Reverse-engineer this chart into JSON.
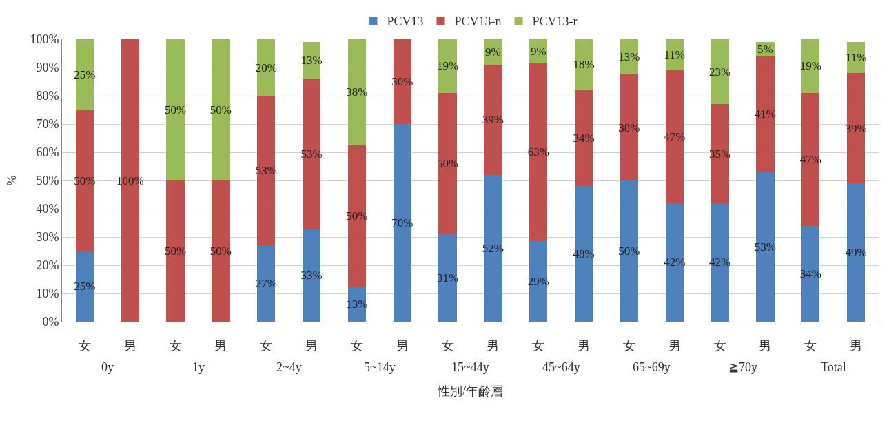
{
  "chart_data": {
    "type": "bar",
    "stacked": true,
    "xlabel": "性別/年齡層",
    "ylabel": "%",
    "categories": [
      "女",
      "男",
      "女",
      "男",
      "女",
      "男",
      "女",
      "男",
      "女",
      "男",
      "女",
      "男",
      "女",
      "男",
      "女",
      "男",
      "女",
      "男"
    ],
    "annotations": [
      "0y",
      "1y",
      "2~4y",
      "5~14y",
      "15~44y",
      "45~64y",
      "65~69y",
      "≧70y",
      "Total"
    ],
    "series": [
      {
        "name": "PCV13",
        "color": "#4f81bd",
        "values": [
          25,
          0,
          0,
          0,
          27,
          33,
          12.5,
          70,
          31,
          52,
          28.6,
          48,
          50,
          42,
          42,
          53,
          34,
          49
        ],
        "value_labels": [
          "25%",
          null,
          null,
          null,
          "27%",
          "33%",
          "13%",
          "70%",
          "31%",
          "52%",
          "29%",
          "48%",
          "50%",
          "42%",
          "42%",
          "53%",
          "34%",
          "49%"
        ]
      },
      {
        "name": "PCV13-n",
        "color": "#c0504d",
        "values": [
          50,
          100,
          50,
          50,
          53,
          53,
          50,
          30,
          50,
          39,
          62.9,
          34,
          37.5,
          47,
          35,
          41,
          47,
          39
        ],
        "value_labels": [
          "50%",
          "100%",
          "50%",
          "50%",
          "53%",
          "53%",
          "50%",
          "30%",
          "50%",
          "39%",
          "63%",
          "34%",
          "38%",
          "47%",
          "35%",
          "41%",
          "47%",
          "39%"
        ]
      },
      {
        "name": "PCV13-r",
        "color": "#9bbb59",
        "values": [
          25,
          0,
          50,
          50,
          20,
          13,
          37.5,
          0,
          19,
          9,
          8.5,
          18,
          12.5,
          11,
          23,
          5,
          19,
          11
        ],
        "value_labels": [
          "25%",
          null,
          "50%",
          "50%",
          "20%",
          "13%",
          "38%",
          null,
          "19%",
          "9%",
          "9%",
          "18%",
          "13%",
          "11%",
          "23%",
          "5%",
          "19%",
          "11%"
        ]
      }
    ],
    "ylim": [
      0,
      100
    ],
    "yticks": [
      {
        "value": 0,
        "label": "0%"
      },
      {
        "value": 10,
        "label": "10%"
      },
      {
        "value": 20,
        "label": "20%"
      },
      {
        "value": 30,
        "label": "30%"
      },
      {
        "value": 40,
        "label": "40%"
      },
      {
        "value": 50,
        "label": "50%"
      },
      {
        "value": 60,
        "label": "60%"
      },
      {
        "value": 70,
        "label": "70%"
      },
      {
        "value": 80,
        "label": "80%"
      },
      {
        "value": 90,
        "label": "90%"
      },
      {
        "value": 100,
        "label": "100%"
      }
    ],
    "grid": "y",
    "legend": "top"
  }
}
